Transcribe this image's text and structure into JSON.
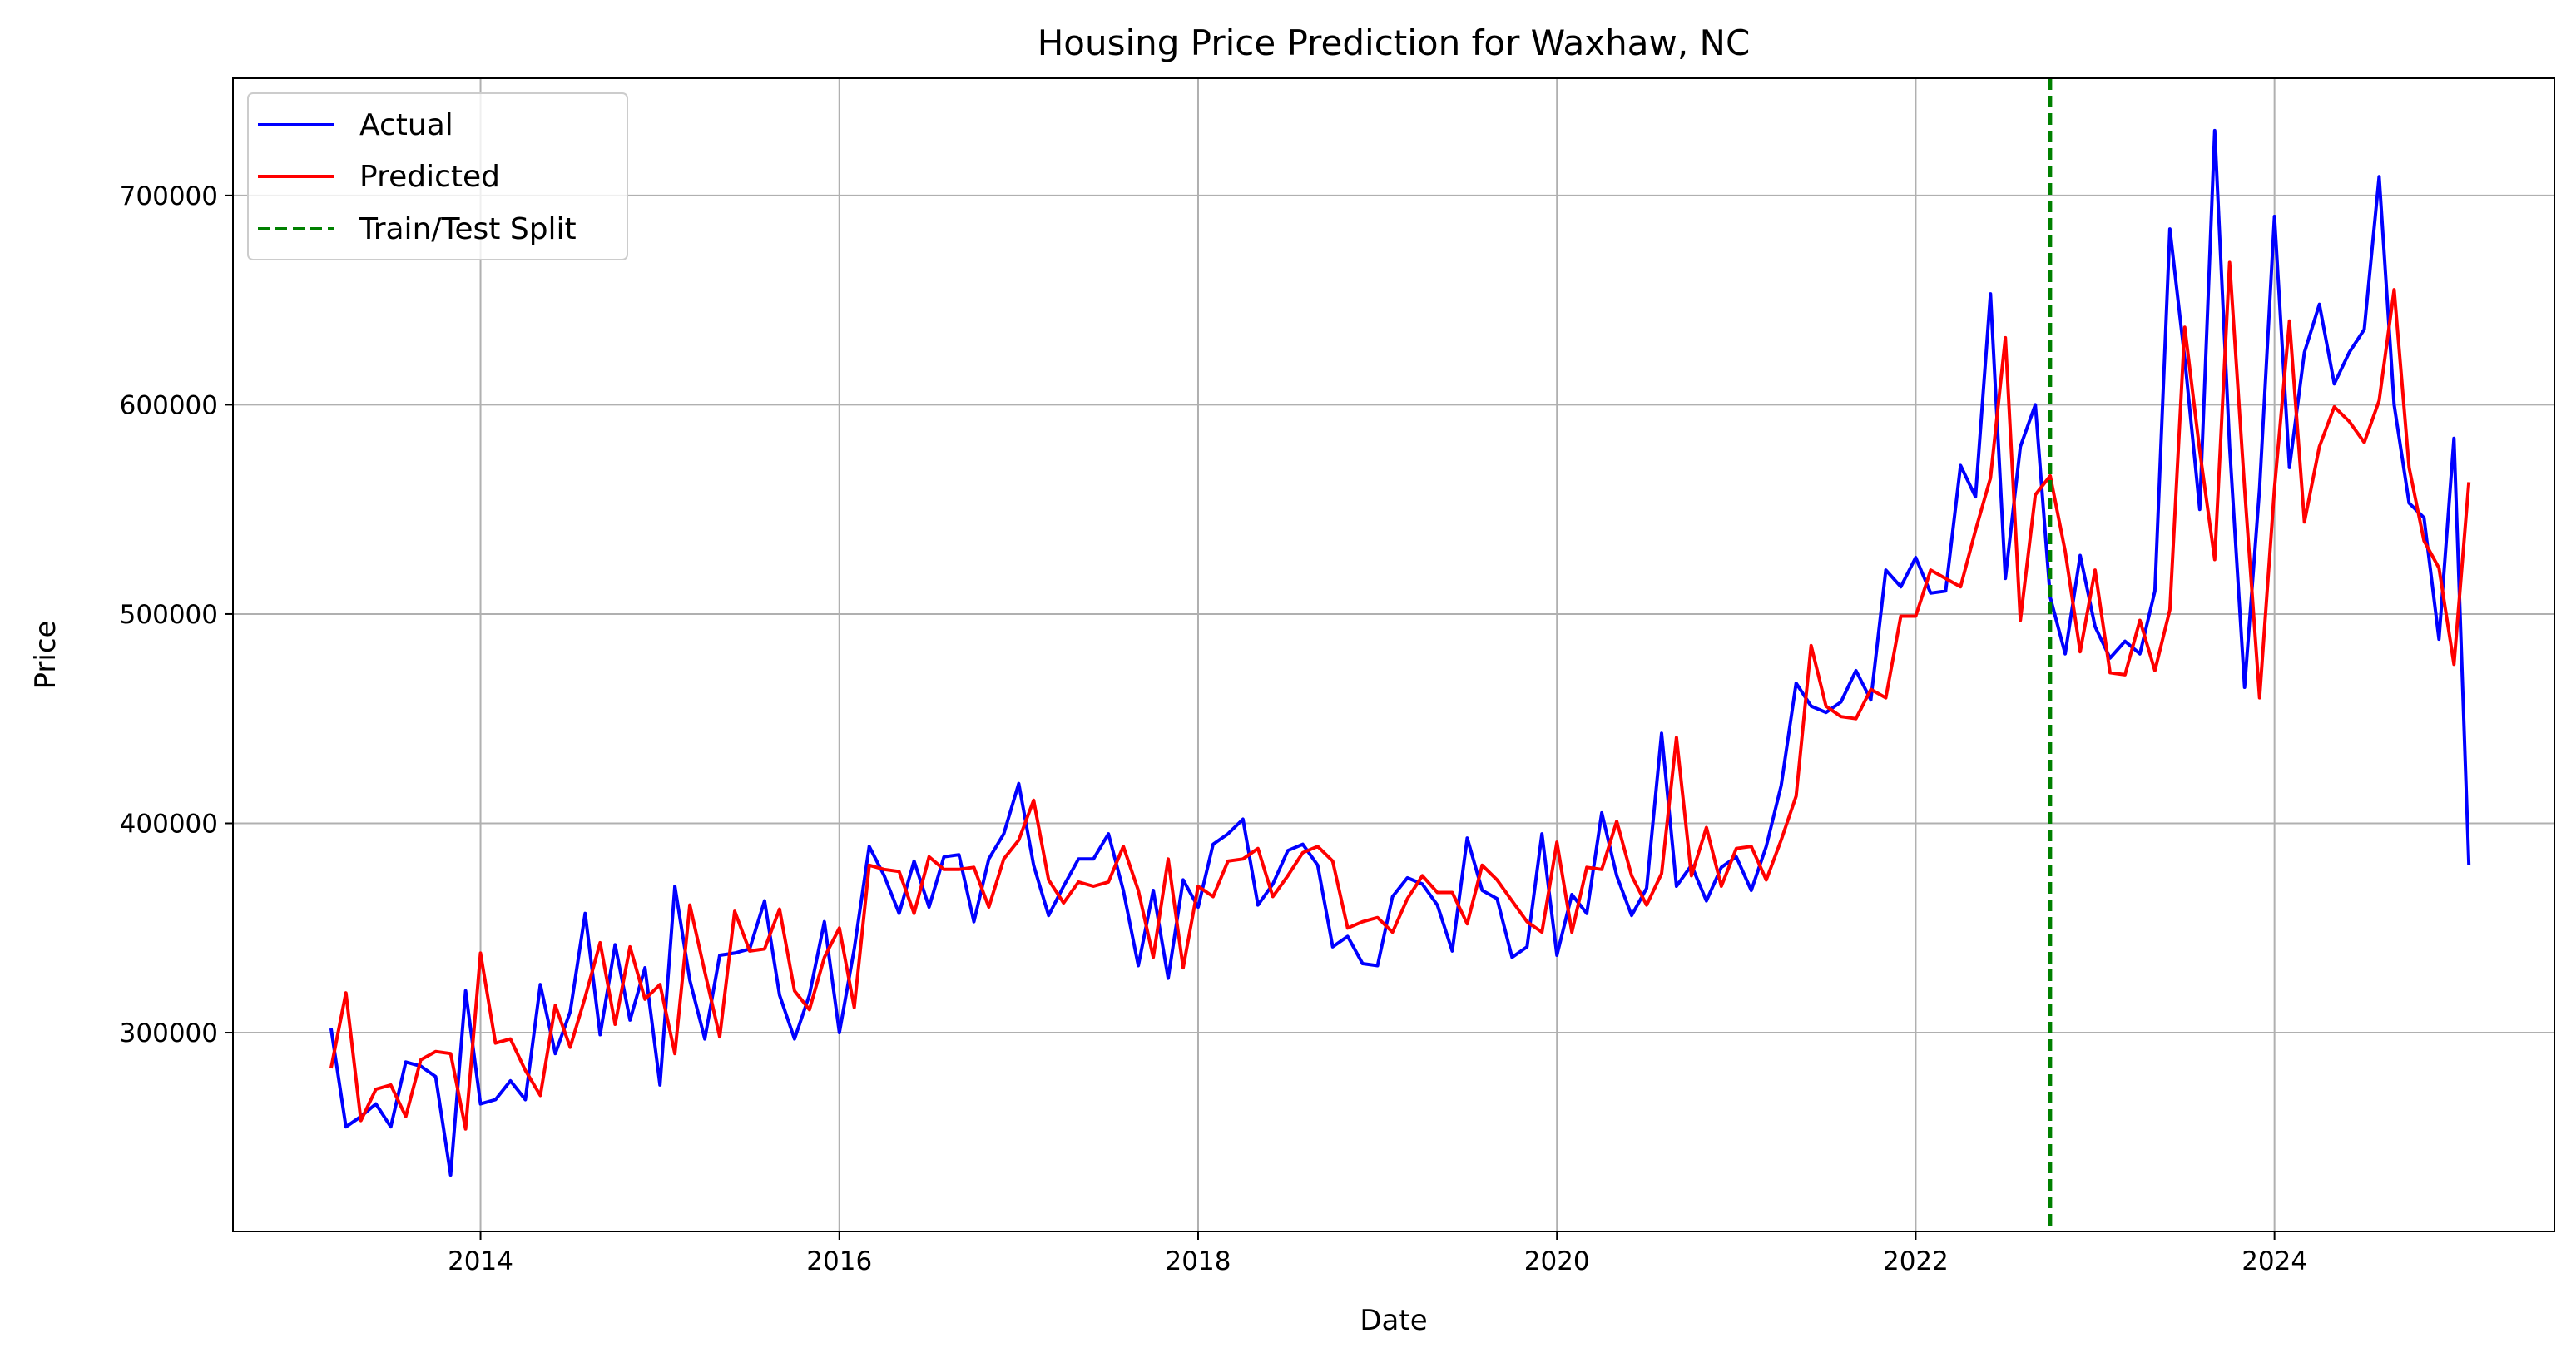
{
  "chart_data": {
    "type": "line",
    "title": "Housing Price Prediction for Waxhaw, NC",
    "xlabel": "Date",
    "ylabel": "Price",
    "xlim": [
      2012.62,
      2025.56
    ],
    "ylim": [
      205000,
      756000
    ],
    "xticks": [
      2014,
      2016,
      2018,
      2020,
      2022,
      2024
    ],
    "yticks": [
      300000,
      400000,
      500000,
      600000,
      700000
    ],
    "grid": true,
    "legend_position": "top-left",
    "x_start": "2013-03",
    "step_months": 1,
    "split": {
      "name": "Train/Test Split",
      "x": "2022-10",
      "color": "#008000"
    },
    "series": [
      {
        "name": "Actual",
        "color": "#0000ff",
        "values": [
          302000,
          255000,
          260000,
          266000,
          255000,
          286000,
          284000,
          279000,
          232000,
          320000,
          266000,
          268000,
          277000,
          268000,
          323000,
          290000,
          310000,
          357000,
          299000,
          342000,
          306000,
          331000,
          275000,
          370000,
          325000,
          297000,
          337000,
          338000,
          340000,
          363000,
          318000,
          297000,
          318000,
          353000,
          300000,
          340000,
          389000,
          375000,
          357000,
          382000,
          360000,
          384000,
          385000,
          353000,
          383000,
          395000,
          419000,
          380000,
          356000,
          370000,
          383000,
          383000,
          395000,
          368000,
          332000,
          368000,
          326000,
          373000,
          360000,
          390000,
          395000,
          402000,
          361000,
          371000,
          387000,
          390000,
          380000,
          341000,
          346000,
          333000,
          332000,
          365000,
          374000,
          371000,
          361000,
          339000,
          393000,
          368000,
          364000,
          336000,
          341000,
          395000,
          337000,
          366000,
          357000,
          405000,
          375000,
          356000,
          369000,
          443000,
          370000,
          380000,
          363000,
          379000,
          384000,
          368000,
          389000,
          418000,
          467000,
          456000,
          453000,
          458000,
          473000,
          459000,
          521000,
          513000,
          527000,
          510000,
          511000,
          571000,
          556000,
          653000,
          517000,
          580000,
          600000,
          508000,
          481000,
          528000,
          494000,
          479000,
          487000,
          481000,
          511000,
          684000,
          622000,
          550000,
          731000,
          580000,
          465000,
          560000,
          690000,
          570000,
          625000,
          648000,
          610000,
          625000,
          636000,
          709000,
          600000,
          553000,
          546000,
          488000,
          584000,
          380000
        ]
      },
      {
        "name": "Predicted",
        "color": "#ff0000",
        "values": [
          283000,
          319000,
          258000,
          273000,
          275000,
          260000,
          287000,
          291000,
          290000,
          254000,
          338000,
          295000,
          297000,
          282000,
          270000,
          313000,
          293000,
          317000,
          343000,
          304000,
          341000,
          316000,
          323000,
          290000,
          361000,
          329000,
          298000,
          358000,
          339000,
          340000,
          359000,
          320000,
          311000,
          336000,
          350000,
          312000,
          380000,
          378000,
          377000,
          357000,
          384000,
          378000,
          378000,
          379000,
          360000,
          383000,
          392000,
          411000,
          373000,
          362000,
          372000,
          370000,
          372000,
          389000,
          368000,
          336000,
          383000,
          331000,
          370000,
          365000,
          382000,
          383000,
          388000,
          365000,
          375000,
          386000,
          389000,
          382000,
          350000,
          353000,
          355000,
          348000,
          364000,
          375000,
          367000,
          367000,
          352000,
          380000,
          373000,
          363000,
          353000,
          348000,
          391000,
          348000,
          379000,
          378000,
          401000,
          375000,
          361000,
          376000,
          441000,
          375000,
          398000,
          370000,
          388000,
          389000,
          373000,
          392000,
          413000,
          485000,
          456000,
          451000,
          450000,
          464000,
          460000,
          499000,
          499000,
          521000,
          517000,
          513000,
          540000,
          565000,
          632000,
          497000,
          557000,
          566000,
          530000,
          482000,
          521000,
          472000,
          471000,
          497000,
          473000,
          502000,
          637000,
          578000,
          526000,
          668000,
          560000,
          460000,
          560000,
          640000,
          544000,
          580000,
          599000,
          592000,
          582000,
          602000,
          655000,
          570000,
          535000,
          522000,
          476000,
          563000
        ]
      }
    ]
  }
}
